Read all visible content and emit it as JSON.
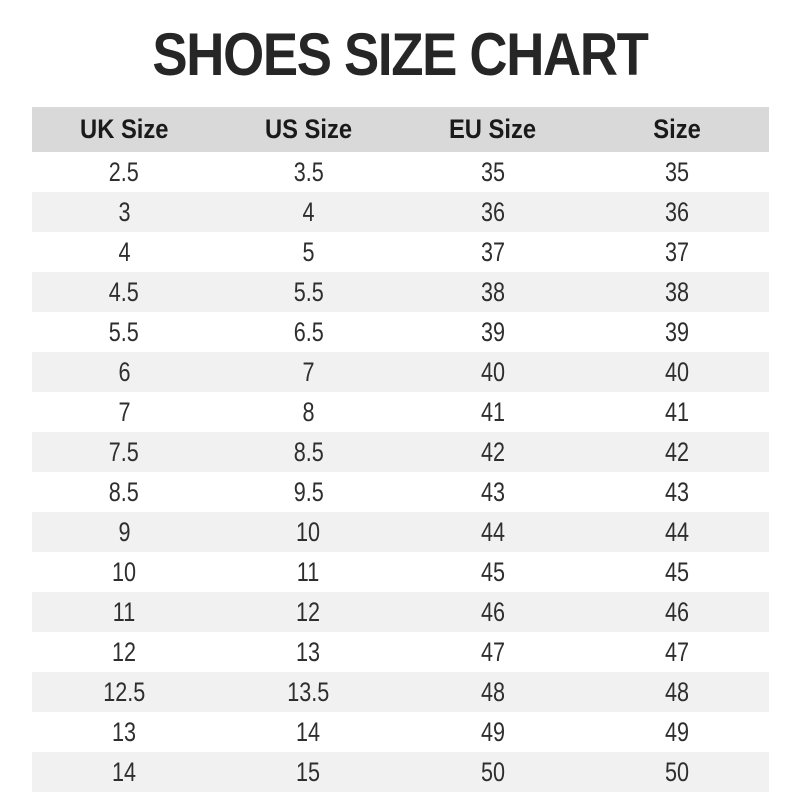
{
  "chart_data": {
    "type": "table",
    "title": "SHOES SIZE CHART",
    "columns": [
      "UK Size",
      "US Size",
      "EU Size",
      "Size"
    ],
    "rows": [
      [
        "2.5",
        "3.5",
        "35",
        "35"
      ],
      [
        "3",
        "4",
        "36",
        "36"
      ],
      [
        "4",
        "5",
        "37",
        "37"
      ],
      [
        "4.5",
        "5.5",
        "38",
        "38"
      ],
      [
        "5.5",
        "6.5",
        "39",
        "39"
      ],
      [
        "6",
        "7",
        "40",
        "40"
      ],
      [
        "7",
        "8",
        "41",
        "41"
      ],
      [
        "7.5",
        "8.5",
        "42",
        "42"
      ],
      [
        "8.5",
        "9.5",
        "43",
        "43"
      ],
      [
        "9",
        "10",
        "44",
        "44"
      ],
      [
        "10",
        "11",
        "45",
        "45"
      ],
      [
        "11",
        "12",
        "46",
        "46"
      ],
      [
        "12",
        "13",
        "47",
        "47"
      ],
      [
        "12.5",
        "13.5",
        "48",
        "48"
      ],
      [
        "13",
        "14",
        "49",
        "49"
      ],
      [
        "14",
        "15",
        "50",
        "50"
      ]
    ],
    "layout": {
      "striped_rows": true,
      "stripe_pattern": "even rows shaded",
      "header_shaded": true
    }
  },
  "colors": {
    "background": "#ffffff",
    "title_text": "#262626",
    "header_bg": "#d9d9d9",
    "header_text": "#1a1a1a",
    "row_stripe_bg": "#f1f1f1",
    "cell_text": "#2e2e2e"
  }
}
